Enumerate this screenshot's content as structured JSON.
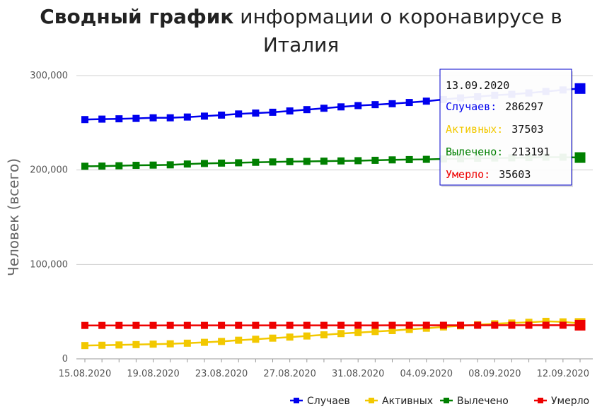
{
  "chart_data": {
    "type": "line",
    "title_bold": "Сводный график",
    "title_rest": "информации о коронавирусе в Италия",
    "ylabel": "Человек (всего)",
    "xlabel": "",
    "ylim": [
      0,
      300000
    ],
    "y_ticks": [
      {
        "value": 0,
        "label": "0"
      },
      {
        "value": 100000,
        "label": "100,000"
      },
      {
        "value": 200000,
        "label": "200,000"
      },
      {
        "value": 300000,
        "label": "300,000"
      }
    ],
    "x": [
      "15.08.2020",
      "16.08.2020",
      "17.08.2020",
      "18.08.2020",
      "19.08.2020",
      "20.08.2020",
      "21.08.2020",
      "22.08.2020",
      "23.08.2020",
      "24.08.2020",
      "25.08.2020",
      "26.08.2020",
      "27.08.2020",
      "28.08.2020",
      "29.08.2020",
      "30.08.2020",
      "31.08.2020",
      "01.09.2020",
      "02.09.2020",
      "03.09.2020",
      "04.09.2020",
      "05.09.2020",
      "06.09.2020",
      "07.09.2020",
      "08.09.2020",
      "09.09.2020",
      "10.09.2020",
      "11.09.2020",
      "12.09.2020",
      "13.09.2020"
    ],
    "x_tick_labels": [
      "15.08.2020",
      "19.08.2020",
      "23.08.2020",
      "27.08.2020",
      "31.08.2020",
      "04.09.2020",
      "08.09.2020",
      "12.09.2020"
    ],
    "grid": true,
    "legend_position": "bottom-right",
    "series": [
      {
        "name": "Случаев",
        "color": "#0000ee",
        "values": [
          253438,
          253915,
          254235,
          254636,
          255278,
          255278,
          256118,
          257065,
          258136,
          259345,
          260298,
          261174,
          262540,
          263949,
          265409,
          266853,
          268218,
          269214,
          270189,
          271515,
          272912,
          274644,
          276338,
          277634,
          279180,
          280153,
          281583,
          283180,
          284796,
          286297
        ]
      },
      {
        "name": "Активных",
        "color": "#f2c800",
        "values": [
          14081,
          14406,
          14708,
          15089,
          15563,
          15923,
          16588,
          17503,
          18438,
          19714,
          20753,
          21932,
          23035,
          24205,
          25439,
          26754,
          27817,
          28915,
          29942,
          31194,
          32424,
          33789,
          34915,
          36108,
          37153,
          37924,
          38724,
          39712,
          39187,
          37503
        ]
      },
      {
        "name": "Вылечено",
        "color": "#008000",
        "values": [
          203968,
          204142,
          204506,
          204960,
          205203,
          205473,
          206329,
          206902,
          207310,
          207653,
          208166,
          208536,
          208842,
          209102,
          209367,
          209610,
          209878,
          210286,
          210739,
          211034,
          211300,
          211743,
          212015,
          212432,
          212701,
          212911,
          213151,
          213591,
          213591,
          213191
        ]
      },
      {
        "name": "Умерло",
        "color": "#ee0000",
        "values": [
          35392,
          35400,
          35405,
          35412,
          35418,
          35427,
          35430,
          35437,
          35441,
          35445,
          35458,
          35463,
          35472,
          35473,
          35477,
          35483,
          35491,
          35497,
          35507,
          35518,
          35534,
          35541,
          35553,
          35563,
          35577,
          35587,
          35597,
          35603,
          35610,
          35603
        ]
      }
    ],
    "tooltip": {
      "date": "13.09.2020",
      "rows": [
        {
          "label": "Случаев:",
          "value": "286297",
          "color": "#0000ee"
        },
        {
          "label": "Активных:",
          "value": "37503",
          "color": "#f2c800"
        },
        {
          "label": "Вылечено:",
          "value": "213191",
          "color": "#008000"
        },
        {
          "label": "Умерло:",
          "value": "35603",
          "color": "#ee0000"
        }
      ]
    }
  }
}
